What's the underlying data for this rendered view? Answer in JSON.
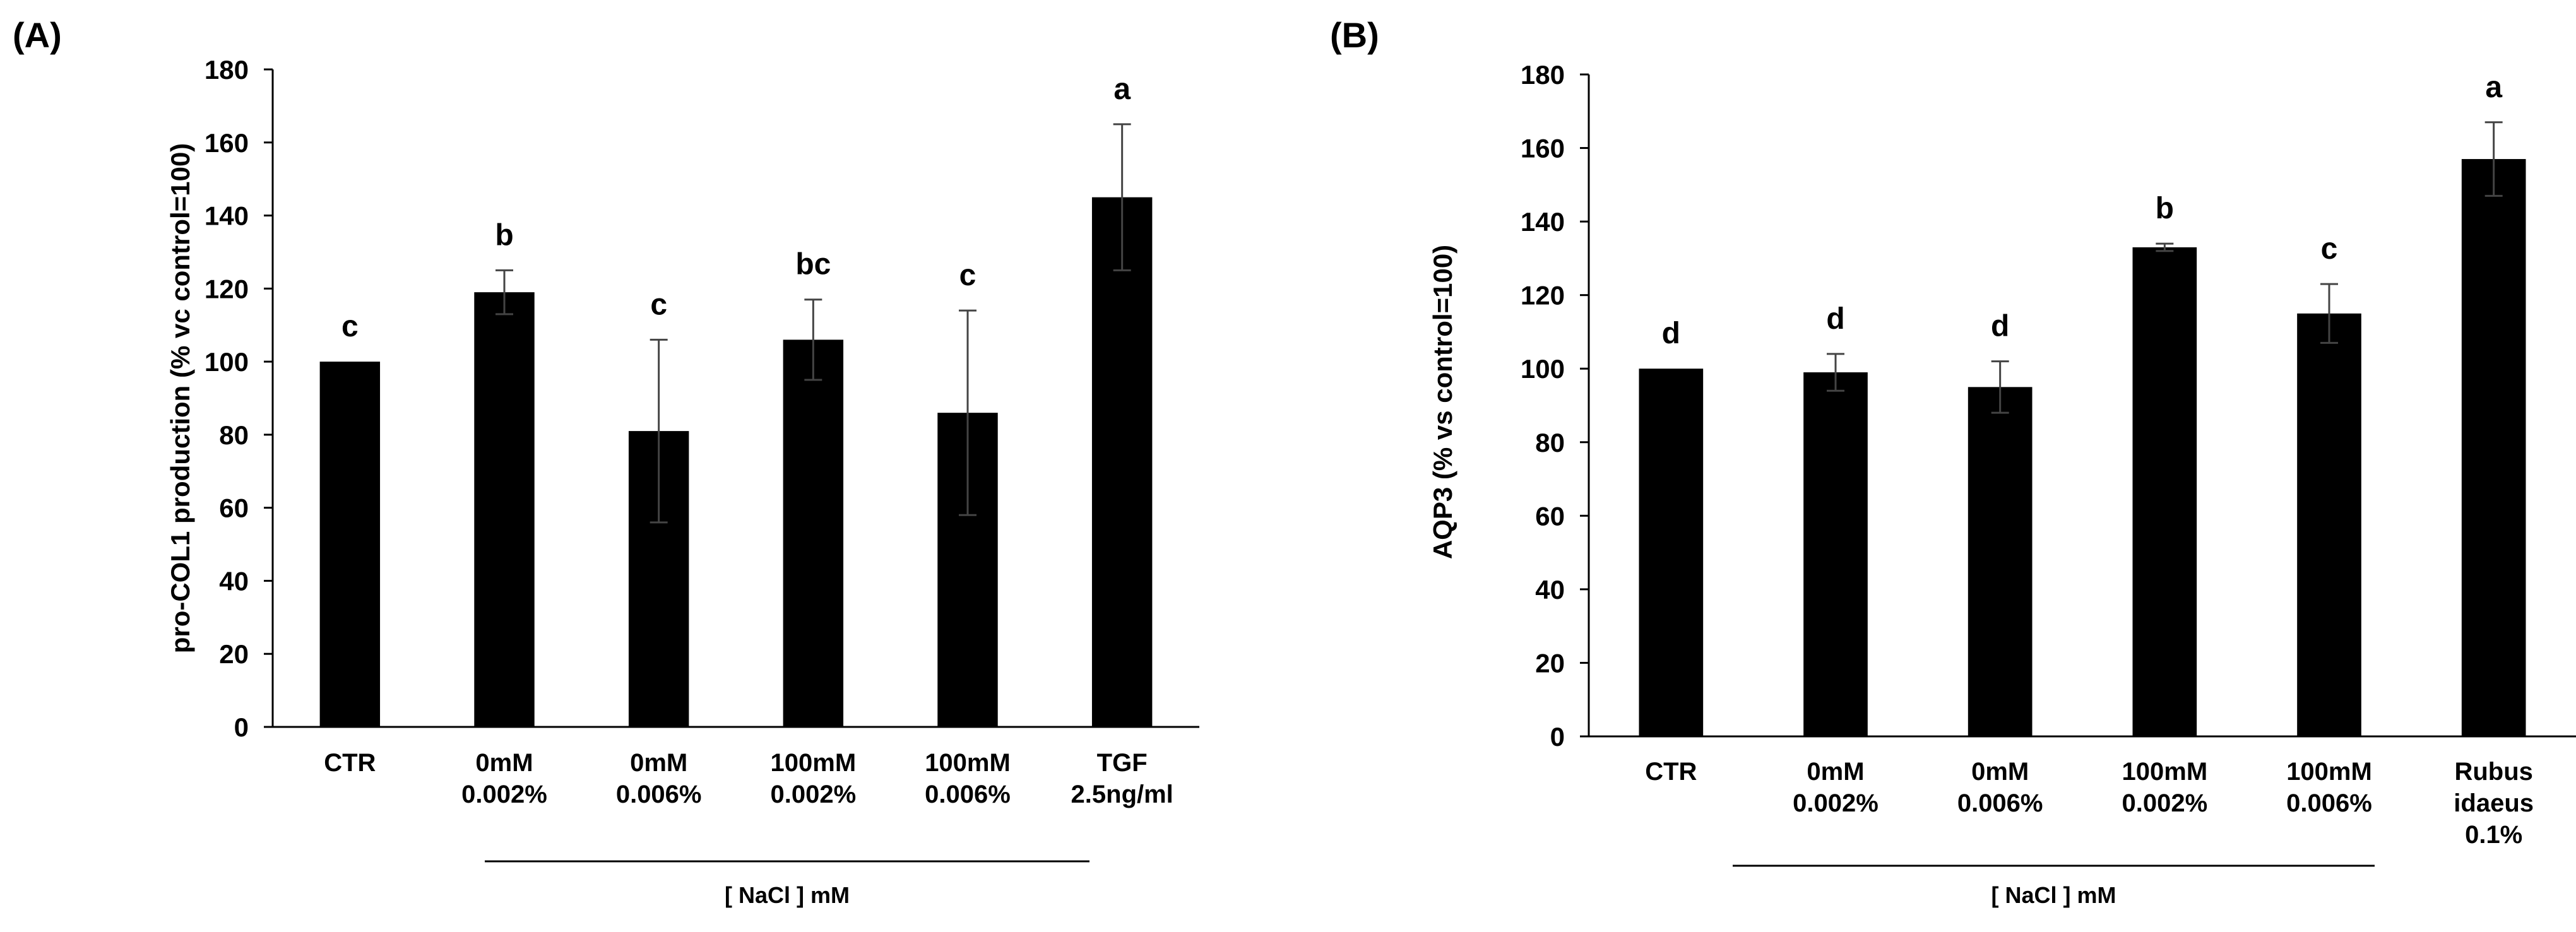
{
  "chart_data": [
    {
      "type": "bar",
      "panel_label": "(A)",
      "categories": [
        [
          "CTR"
        ],
        [
          "0mM",
          "0.002%"
        ],
        [
          "0mM",
          "0.006%"
        ],
        [
          "100mM",
          "0.002%"
        ],
        [
          "100mM",
          "0.006%"
        ],
        [
          "TGF",
          "2.5ng/ml"
        ]
      ],
      "values": [
        100,
        119,
        81,
        106,
        86,
        145
      ],
      "errors": [
        0,
        6,
        25,
        11,
        28,
        20
      ],
      "significance": [
        "c",
        "b",
        "c",
        "bc",
        "c",
        "a"
      ],
      "ylabel": "pro-COL1 production (% vc control=100)",
      "ylim": [
        0,
        180
      ],
      "yticks": [
        0,
        20,
        40,
        60,
        80,
        100,
        120,
        140,
        160,
        180
      ],
      "group_label": "[ NaCl ] mM",
      "group_span": [
        1,
        4
      ],
      "bar_color": "#000000"
    },
    {
      "type": "bar",
      "panel_label": "(B)",
      "categories": [
        [
          "CTR"
        ],
        [
          "0mM",
          "0.002%"
        ],
        [
          "0mM",
          "0.006%"
        ],
        [
          "100mM",
          "0.002%"
        ],
        [
          "100mM",
          "0.006%"
        ],
        [
          "Rubus",
          "idaeus",
          "0.1%"
        ]
      ],
      "values": [
        100,
        99,
        95,
        133,
        115,
        157
      ],
      "errors": [
        0,
        5,
        7,
        1,
        8,
        10
      ],
      "significance": [
        "d",
        "d",
        "d",
        "b",
        "c",
        "a"
      ],
      "ylabel": "AQP3 (% vs control=100)",
      "ylim": [
        0,
        180
      ],
      "yticks": [
        0,
        20,
        40,
        60,
        80,
        100,
        120,
        140,
        160,
        180
      ],
      "group_label": "[ NaCl ] mM",
      "group_span": [
        1,
        4
      ],
      "bar_color": "#000000"
    }
  ]
}
